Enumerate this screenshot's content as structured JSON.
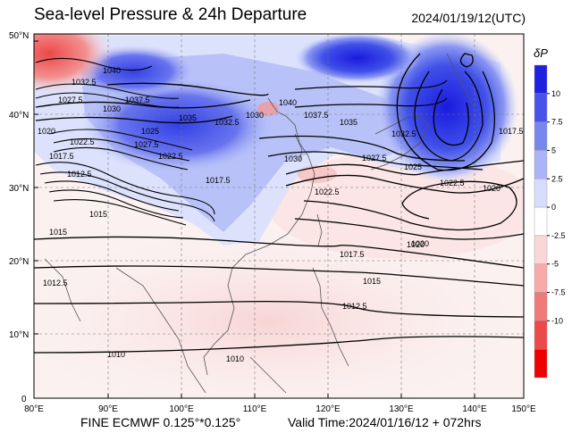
{
  "header": {
    "title": "Sea-level Pressure & 24h Departure",
    "timestamp": "2024/01/19/12(UTC)"
  },
  "footer": {
    "model": "FINE ECMWF 0.125°*0.125°",
    "valid_time": "Valid Time:2024/01/16/12 + 072hrs"
  },
  "axes": {
    "lat_labels": [
      "50°N",
      "40°N",
      "30°N",
      "20°N",
      "10°N",
      "0"
    ],
    "lon_labels": [
      "80°E",
      "90°E",
      "100°E",
      "110°E",
      "120°E",
      "130°E",
      "140°E",
      "150°E"
    ]
  },
  "colorbar": {
    "title": "δP",
    "labels": [
      "10",
      "7.5",
      "5",
      "2.5",
      "0",
      "-2.5",
      "-5",
      "-7.5",
      "-10"
    ],
    "colors": [
      "#2020e0",
      "#4a52ec",
      "#7a86f0",
      "#aab4f6",
      "#d6dcfb",
      "#ffffff",
      "#fbd6d6",
      "#f6aaaa",
      "#f07a7a",
      "#ec4a4a",
      "#f00000"
    ]
  },
  "isobar_labels": [
    "1040",
    "1032.5",
    "1027.5",
    "1037.5",
    "1030",
    "1020",
    "1022.5",
    "1035",
    "1025",
    "1017.5",
    "1012.5",
    "1015",
    "1027.5",
    "1022.5",
    "1032.5",
    "1030",
    "1040",
    "1037.5",
    "1035",
    "1032.5",
    "1027.5",
    "1030",
    "1025",
    "1022.5",
    "1020",
    "1017.5",
    "1020",
    "1022.5",
    "1015",
    "1012.5",
    "1012.5",
    "1010",
    "1010",
    "1015",
    "1017.5",
    "1020",
    "1017.5"
  ]
}
